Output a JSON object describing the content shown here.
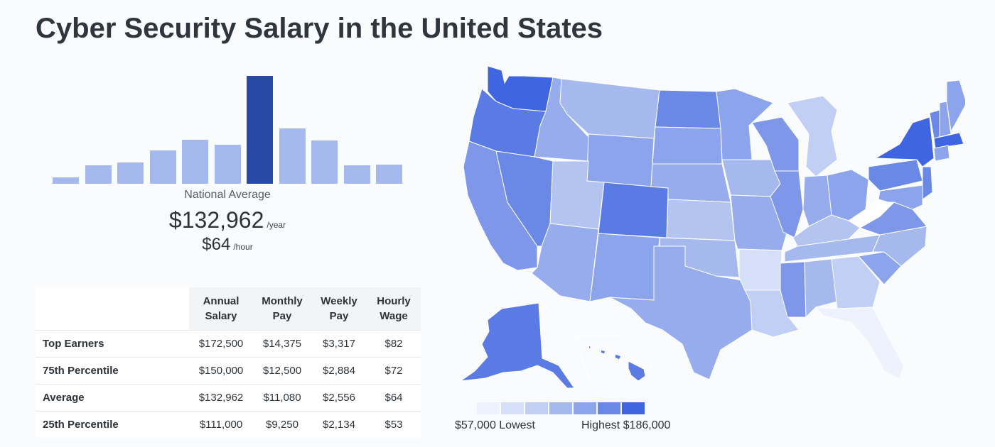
{
  "page": {
    "title": "Cyber Security Salary in the United States"
  },
  "histogram": {
    "bars": [
      0.06,
      0.17,
      0.2,
      0.31,
      0.41,
      0.36,
      1.0,
      0.51,
      0.4,
      0.17,
      0.18
    ],
    "peak_index": 6,
    "color": "#a6b9ef",
    "peak_color": "#284aa6"
  },
  "national": {
    "label": "National Average",
    "annual": "$132,962",
    "annual_unit": "/year",
    "hourly": "$64",
    "hourly_unit": "/hour"
  },
  "table": {
    "headers": [
      "Annual Salary",
      "Monthly Pay",
      "Weekly Pay",
      "Hourly Wage"
    ],
    "rows": [
      {
        "label": "Top Earners",
        "cells": [
          "$172,500",
          "$14,375",
          "$3,317",
          "$82"
        ]
      },
      {
        "label": "75th Percentile",
        "cells": [
          "$150,000",
          "$12,500",
          "$2,884",
          "$72"
        ]
      },
      {
        "label": "Average",
        "cells": [
          "$132,962",
          "$11,080",
          "$2,556",
          "$64"
        ]
      },
      {
        "label": "25th Percentile",
        "cells": [
          "$111,000",
          "$9,250",
          "$2,134",
          "$53"
        ]
      }
    ]
  },
  "map": {
    "legend_colors": [
      "#eef2fc",
      "#d6e0f8",
      "#c1cff4",
      "#a6b9ef",
      "#8ca4eb",
      "#6a88e6",
      "#3f66e0"
    ],
    "legend_low": "$57,000 Lowest",
    "legend_high": "Highest $186,000"
  }
}
